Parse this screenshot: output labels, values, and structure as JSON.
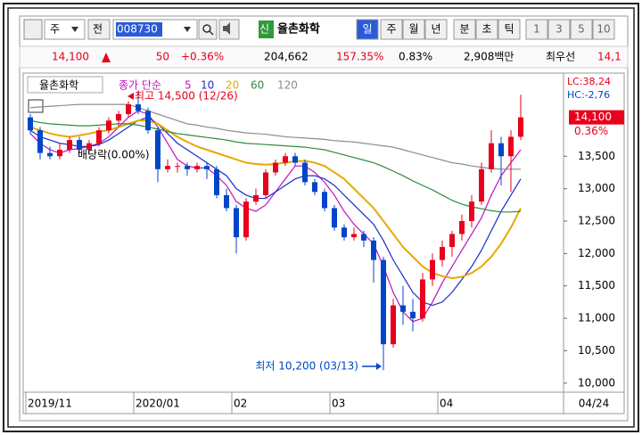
{
  "toolbar": {
    "market": "주",
    "mode": "전",
    "code": "008730",
    "badge": "신",
    "name": "율촌화학",
    "periods": [
      "일",
      "주",
      "월",
      "년",
      "분",
      "초",
      "틱"
    ],
    "intervals": [
      "1",
      "3",
      "5",
      "10"
    ]
  },
  "info": {
    "price": "14,100",
    "change": "50",
    "change_rate": "+0.36%",
    "volume": "204,662",
    "volume_rate": "157.35%",
    "turnover": "0.83%",
    "amount": "2,908백만",
    "best_label": "최우선",
    "best_price": "14,1"
  },
  "chart_data": {
    "type": "candlestick",
    "title": "율촌화학",
    "ma_label": "종가 단순",
    "categories": [
      "2019/11",
      null,
      null,
      null,
      null,
      null,
      null,
      null,
      null,
      null,
      null,
      "2020/01",
      null,
      null,
      null,
      null,
      null,
      null,
      null,
      null,
      null,
      "02",
      null,
      null,
      null,
      null,
      null,
      null,
      null,
      null,
      null,
      "03",
      null,
      null,
      null,
      null,
      null,
      null,
      null,
      null,
      null,
      null,
      "04",
      null,
      null,
      null,
      null,
      null,
      null,
      null,
      null
    ],
    "last_date": "04/24",
    "open": [
      14100,
      13900,
      13550,
      13500,
      13600,
      13750,
      13600,
      13700,
      13900,
      14050,
      14150,
      14300,
      14200,
      13900,
      13300,
      13350,
      13350,
      13300,
      13350,
      13300,
      12900,
      12700,
      12250,
      12800,
      12900,
      13250,
      13400,
      13500,
      13400,
      13100,
      12950,
      12700,
      12400,
      12250,
      12300,
      12200,
      11900,
      10600,
      11200,
      11100,
      11000,
      11600,
      11900,
      12100,
      12300,
      12500,
      12800,
      13300,
      13700,
      13500,
      13800
    ],
    "high": [
      14150,
      13950,
      13650,
      13700,
      13800,
      13800,
      13750,
      13950,
      14100,
      14200,
      14350,
      14500,
      14250,
      13950,
      13450,
      13400,
      13400,
      13400,
      13400,
      13350,
      13000,
      12750,
      12850,
      13000,
      13300,
      13450,
      13550,
      13550,
      13450,
      13150,
      13000,
      12750,
      12450,
      12400,
      12350,
      12250,
      11950,
      11300,
      11500,
      11300,
      11700,
      12000,
      12200,
      12350,
      12600,
      12900,
      13400,
      13900,
      13800,
      13900,
      14450
    ],
    "low": [
      13850,
      13450,
      13450,
      13450,
      13550,
      13550,
      13550,
      13650,
      13850,
      13950,
      14100,
      14150,
      13850,
      13100,
      13250,
      13250,
      13200,
      13250,
      13150,
      12850,
      12650,
      12000,
      12200,
      12750,
      12850,
      13200,
      13350,
      13350,
      13050,
      12900,
      12650,
      12350,
      12200,
      12200,
      12100,
      11550,
      10200,
      10550,
      10900,
      10800,
      10950,
      11500,
      11800,
      11950,
      12200,
      12400,
      12750,
      13250,
      13050,
      12950,
      13750
    ],
    "close": [
      13900,
      13550,
      13500,
      13600,
      13750,
      13600,
      13700,
      13900,
      14050,
      14150,
      14300,
      14200,
      13900,
      13300,
      13350,
      13350,
      13300,
      13350,
      13300,
      12900,
      12700,
      12250,
      12800,
      12900,
      13250,
      13400,
      13500,
      13400,
      13100,
      12950,
      12700,
      12400,
      12250,
      12300,
      12200,
      11900,
      10600,
      11200,
      11100,
      11000,
      11600,
      11900,
      12100,
      12300,
      12500,
      12800,
      13300,
      13700,
      13500,
      13800,
      14100
    ],
    "up_color": "#e8001c",
    "down_color": "#0046c8",
    "series": [
      {
        "name": "5",
        "color": "#c010c0",
        "values": [
          13850,
          13700,
          13600,
          13550,
          13600,
          13620,
          13650,
          13700,
          13800,
          13950,
          14100,
          14200,
          14150,
          13950,
          13700,
          13450,
          13350,
          13320,
          13320,
          13200,
          13050,
          12800,
          12700,
          12650,
          12750,
          12950,
          13150,
          13350,
          13350,
          13250,
          13100,
          12900,
          12650,
          12450,
          12300,
          12150,
          11800,
          11400,
          11100,
          10950,
          11000,
          11250,
          11550,
          11800,
          12050,
          12300,
          12550,
          12900,
          13200,
          13400,
          13600
        ]
      },
      {
        "name": "10",
        "color": "#1a2ad0",
        "values": [
          13900,
          13800,
          13750,
          13700,
          13680,
          13650,
          13650,
          13680,
          13750,
          13850,
          13950,
          14050,
          14100,
          14000,
          13850,
          13700,
          13600,
          13500,
          13400,
          13300,
          13200,
          13000,
          12900,
          12850,
          12850,
          12950,
          13050,
          13150,
          13200,
          13200,
          13150,
          13050,
          12900,
          12750,
          12600,
          12450,
          12200,
          11900,
          11650,
          11400,
          11250,
          11200,
          11250,
          11400,
          11600,
          11800,
          12050,
          12350,
          12650,
          12900,
          13150
        ]
      },
      {
        "name": "20",
        "color": "#e8a800",
        "values": [
          13950,
          13900,
          13850,
          13820,
          13800,
          13820,
          13850,
          13880,
          13900,
          13950,
          14000,
          14050,
          14050,
          14000,
          13900,
          13800,
          13720,
          13650,
          13600,
          13550,
          13500,
          13450,
          13400,
          13380,
          13370,
          13380,
          13400,
          13420,
          13430,
          13400,
          13350,
          13250,
          13150,
          13000,
          12850,
          12700,
          12500,
          12300,
          12100,
          11950,
          11800,
          11700,
          11650,
          11620,
          11640,
          11700,
          11800,
          11950,
          12150,
          12400,
          12700
        ]
      },
      {
        "name": "60",
        "color": "#2e8b3a",
        "values": [
          14050,
          14020,
          14000,
          13990,
          13980,
          13970,
          13970,
          13980,
          13990,
          14000,
          14000,
          13980,
          13950,
          13920,
          13880,
          13850,
          13830,
          13810,
          13790,
          13770,
          13750,
          13720,
          13700,
          13690,
          13680,
          13670,
          13660,
          13650,
          13640,
          13620,
          13600,
          13560,
          13520,
          13480,
          13440,
          13400,
          13340,
          13270,
          13200,
          13120,
          13050,
          12980,
          12900,
          12820,
          12760,
          12720,
          12690,
          12660,
          12640,
          12640,
          12650
        ]
      },
      {
        "name": "120",
        "color": "#8c8c8c",
        "values": [
          14250,
          14260,
          14270,
          14280,
          14290,
          14300,
          14300,
          14300,
          14300,
          14300,
          14300,
          14250,
          14200,
          14150,
          14100,
          14050,
          14000,
          13980,
          13950,
          13930,
          13900,
          13880,
          13860,
          13850,
          13840,
          13820,
          13800,
          13790,
          13780,
          13770,
          13760,
          13740,
          13730,
          13720,
          13700,
          13680,
          13660,
          13640,
          13600,
          13560,
          13520,
          13480,
          13440,
          13400,
          13380,
          13350,
          13330,
          13310,
          13300,
          13300,
          13300
        ]
      }
    ],
    "ylim": [
      9860,
      14700
    ],
    "yticks": [
      {
        "value": 10000,
        "label": "10,000"
      },
      {
        "value": 10500,
        "label": "10,500"
      },
      {
        "value": 11000,
        "label": "11,000"
      },
      {
        "value": 11500,
        "label": "11,500"
      },
      {
        "value": 12000,
        "label": "12,000"
      },
      {
        "value": 12500,
        "label": "12,500"
      },
      {
        "value": 13000,
        "label": "13,000"
      },
      {
        "value": 13500,
        "label": "13,500"
      }
    ],
    "high_note": "최고 14,500 (12/26)",
    "low_note": "최저 10,200 (03/13)",
    "dividend_note": "배당락(0.00%)",
    "lc": "LC:38,24",
    "hc": "HC:-2,76",
    "last_price": {
      "value": 14100,
      "label": "14,100"
    },
    "last_change": "0.36%"
  }
}
